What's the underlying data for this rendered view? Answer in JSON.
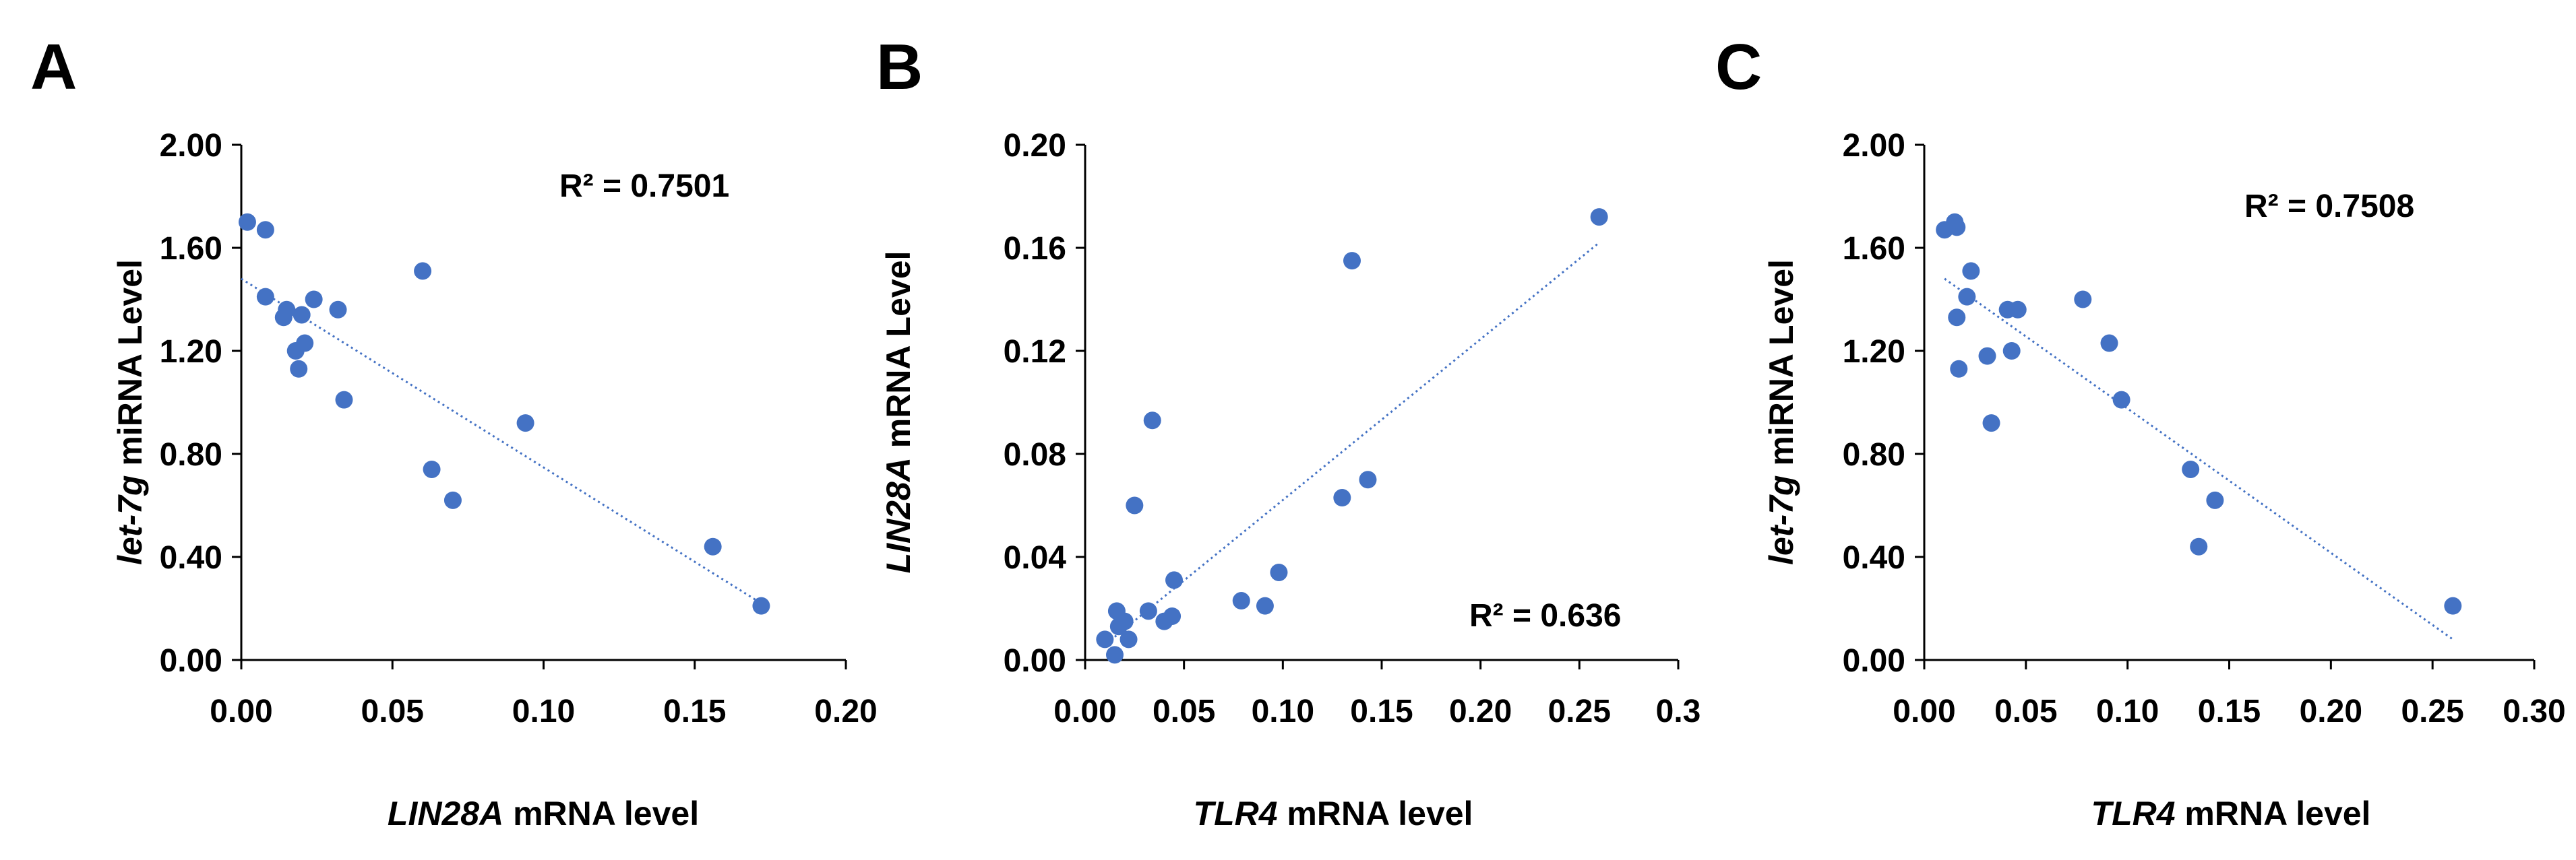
{
  "chart_data": [
    {
      "type": "scatter",
      "panel_label": "A",
      "title": "",
      "xlabel_italic": "LIN28A",
      "xlabel_rest": " mRNA level",
      "ylabel_italic": "let-7g",
      "ylabel_rest": " miRNA Level",
      "xlim": [
        0,
        0.2
      ],
      "ylim": [
        0,
        2.0
      ],
      "x_ticks": [
        0,
        0.05,
        0.1,
        0.15,
        0.2
      ],
      "x_tick_labels": [
        "0.00",
        "0.05",
        "0.10",
        "0.15",
        "0.20"
      ],
      "y_ticks": [
        0,
        0.4,
        0.8,
        1.2,
        1.6,
        2.0
      ],
      "y_tick_labels": [
        "0.00",
        "0.40",
        "0.80",
        "1.20",
        "1.60",
        "2.00"
      ],
      "r2_label": "R² = 0.7501",
      "r2_position": "top-right",
      "grid": false,
      "series": [
        {
          "name": "samples",
          "color": "#4472C4",
          "points": [
            [
              0.002,
              1.7
            ],
            [
              0.008,
              1.67
            ],
            [
              0.008,
              1.41
            ],
            [
              0.014,
              1.33
            ],
            [
              0.015,
              1.36
            ],
            [
              0.018,
              1.2
            ],
            [
              0.019,
              1.13
            ],
            [
              0.02,
              1.34
            ],
            [
              0.021,
              1.23
            ],
            [
              0.024,
              1.4
            ],
            [
              0.032,
              1.36
            ],
            [
              0.034,
              1.01
            ],
            [
              0.06,
              1.51
            ],
            [
              0.063,
              0.74
            ],
            [
              0.07,
              0.62
            ],
            [
              0.094,
              0.92
            ],
            [
              0.156,
              0.44
            ],
            [
              0.172,
              0.21
            ]
          ]
        }
      ],
      "trendline": {
        "style": "dotted",
        "color": "#4472C4",
        "from": [
          0.0,
          1.48
        ],
        "to": [
          0.172,
          0.22
        ]
      }
    },
    {
      "type": "scatter",
      "panel_label": "B",
      "title": "",
      "xlabel_italic": "TLR4",
      "xlabel_rest": " mRNA level",
      "ylabel_italic": "LIN28A",
      "ylabel_rest": " mRNA Level",
      "xlim": [
        0,
        0.3
      ],
      "ylim": [
        0,
        0.2
      ],
      "x_ticks": [
        0,
        0.05,
        0.1,
        0.15,
        0.2,
        0.25,
        0.3
      ],
      "x_tick_labels": [
        "0.00",
        "0.05",
        "0.10",
        "0.15",
        "0.20",
        "0.25",
        "0.3"
      ],
      "y_ticks": [
        0,
        0.04,
        0.08,
        0.12,
        0.16,
        0.2
      ],
      "y_tick_labels": [
        "0.00",
        "0.04",
        "0.08",
        "0.12",
        "0.16",
        "0.20"
      ],
      "r2_label": "R² = 0.636",
      "r2_position": "bottom-right",
      "grid": false,
      "series": [
        {
          "name": "samples",
          "color": "#4472C4",
          "points": [
            [
              0.01,
              0.008
            ],
            [
              0.015,
              0.002
            ],
            [
              0.016,
              0.019
            ],
            [
              0.017,
              0.013
            ],
            [
              0.02,
              0.015
            ],
            [
              0.022,
              0.008
            ],
            [
              0.025,
              0.06
            ],
            [
              0.032,
              0.019
            ],
            [
              0.034,
              0.093
            ],
            [
              0.04,
              0.015
            ],
            [
              0.044,
              0.017
            ],
            [
              0.045,
              0.031
            ],
            [
              0.079,
              0.023
            ],
            [
              0.091,
              0.021
            ],
            [
              0.098,
              0.034
            ],
            [
              0.13,
              0.063
            ],
            [
              0.135,
              0.155
            ],
            [
              0.143,
              0.07
            ],
            [
              0.26,
              0.172
            ]
          ]
        }
      ],
      "trendline": {
        "style": "dotted",
        "color": "#4472C4",
        "from": [
          0.015,
          0.009
        ],
        "to": [
          0.26,
          0.162
        ]
      }
    },
    {
      "type": "scatter",
      "panel_label": "C",
      "title": "",
      "xlabel_italic": "TLR4",
      "xlabel_rest": " mRNA level",
      "ylabel_italic": "let-7g",
      "ylabel_rest": " miRNA Level",
      "xlim": [
        0,
        0.3
      ],
      "ylim": [
        0,
        2.0
      ],
      "x_ticks": [
        0,
        0.05,
        0.1,
        0.15,
        0.2,
        0.25,
        0.3
      ],
      "x_tick_labels": [
        "0.00",
        "0.05",
        "0.10",
        "0.15",
        "0.20",
        "0.25",
        "0.30"
      ],
      "y_ticks": [
        0,
        0.4,
        0.8,
        1.2,
        1.6,
        2.0
      ],
      "y_tick_labels": [
        "0.00",
        "0.40",
        "0.80",
        "1.20",
        "1.60",
        "2.00"
      ],
      "r2_label": "R² = 0.7508",
      "r2_position": "top-right",
      "grid": false,
      "series": [
        {
          "name": "samples",
          "color": "#4472C4",
          "points": [
            [
              0.01,
              1.67
            ],
            [
              0.015,
              1.7
            ],
            [
              0.016,
              1.68
            ],
            [
              0.016,
              1.33
            ],
            [
              0.017,
              1.13
            ],
            [
              0.021,
              1.41
            ],
            [
              0.023,
              1.51
            ],
            [
              0.031,
              1.18
            ],
            [
              0.033,
              0.92
            ],
            [
              0.041,
              1.36
            ],
            [
              0.043,
              1.2
            ],
            [
              0.046,
              1.36
            ],
            [
              0.078,
              1.4
            ],
            [
              0.091,
              1.23
            ],
            [
              0.097,
              1.01
            ],
            [
              0.131,
              0.74
            ],
            [
              0.135,
              0.44
            ],
            [
              0.143,
              0.62
            ],
            [
              0.26,
              0.21
            ]
          ]
        }
      ],
      "trendline": {
        "style": "dotted",
        "color": "#4472C4",
        "from": [
          0.01,
          1.48
        ],
        "to": [
          0.26,
          0.08
        ]
      }
    }
  ]
}
